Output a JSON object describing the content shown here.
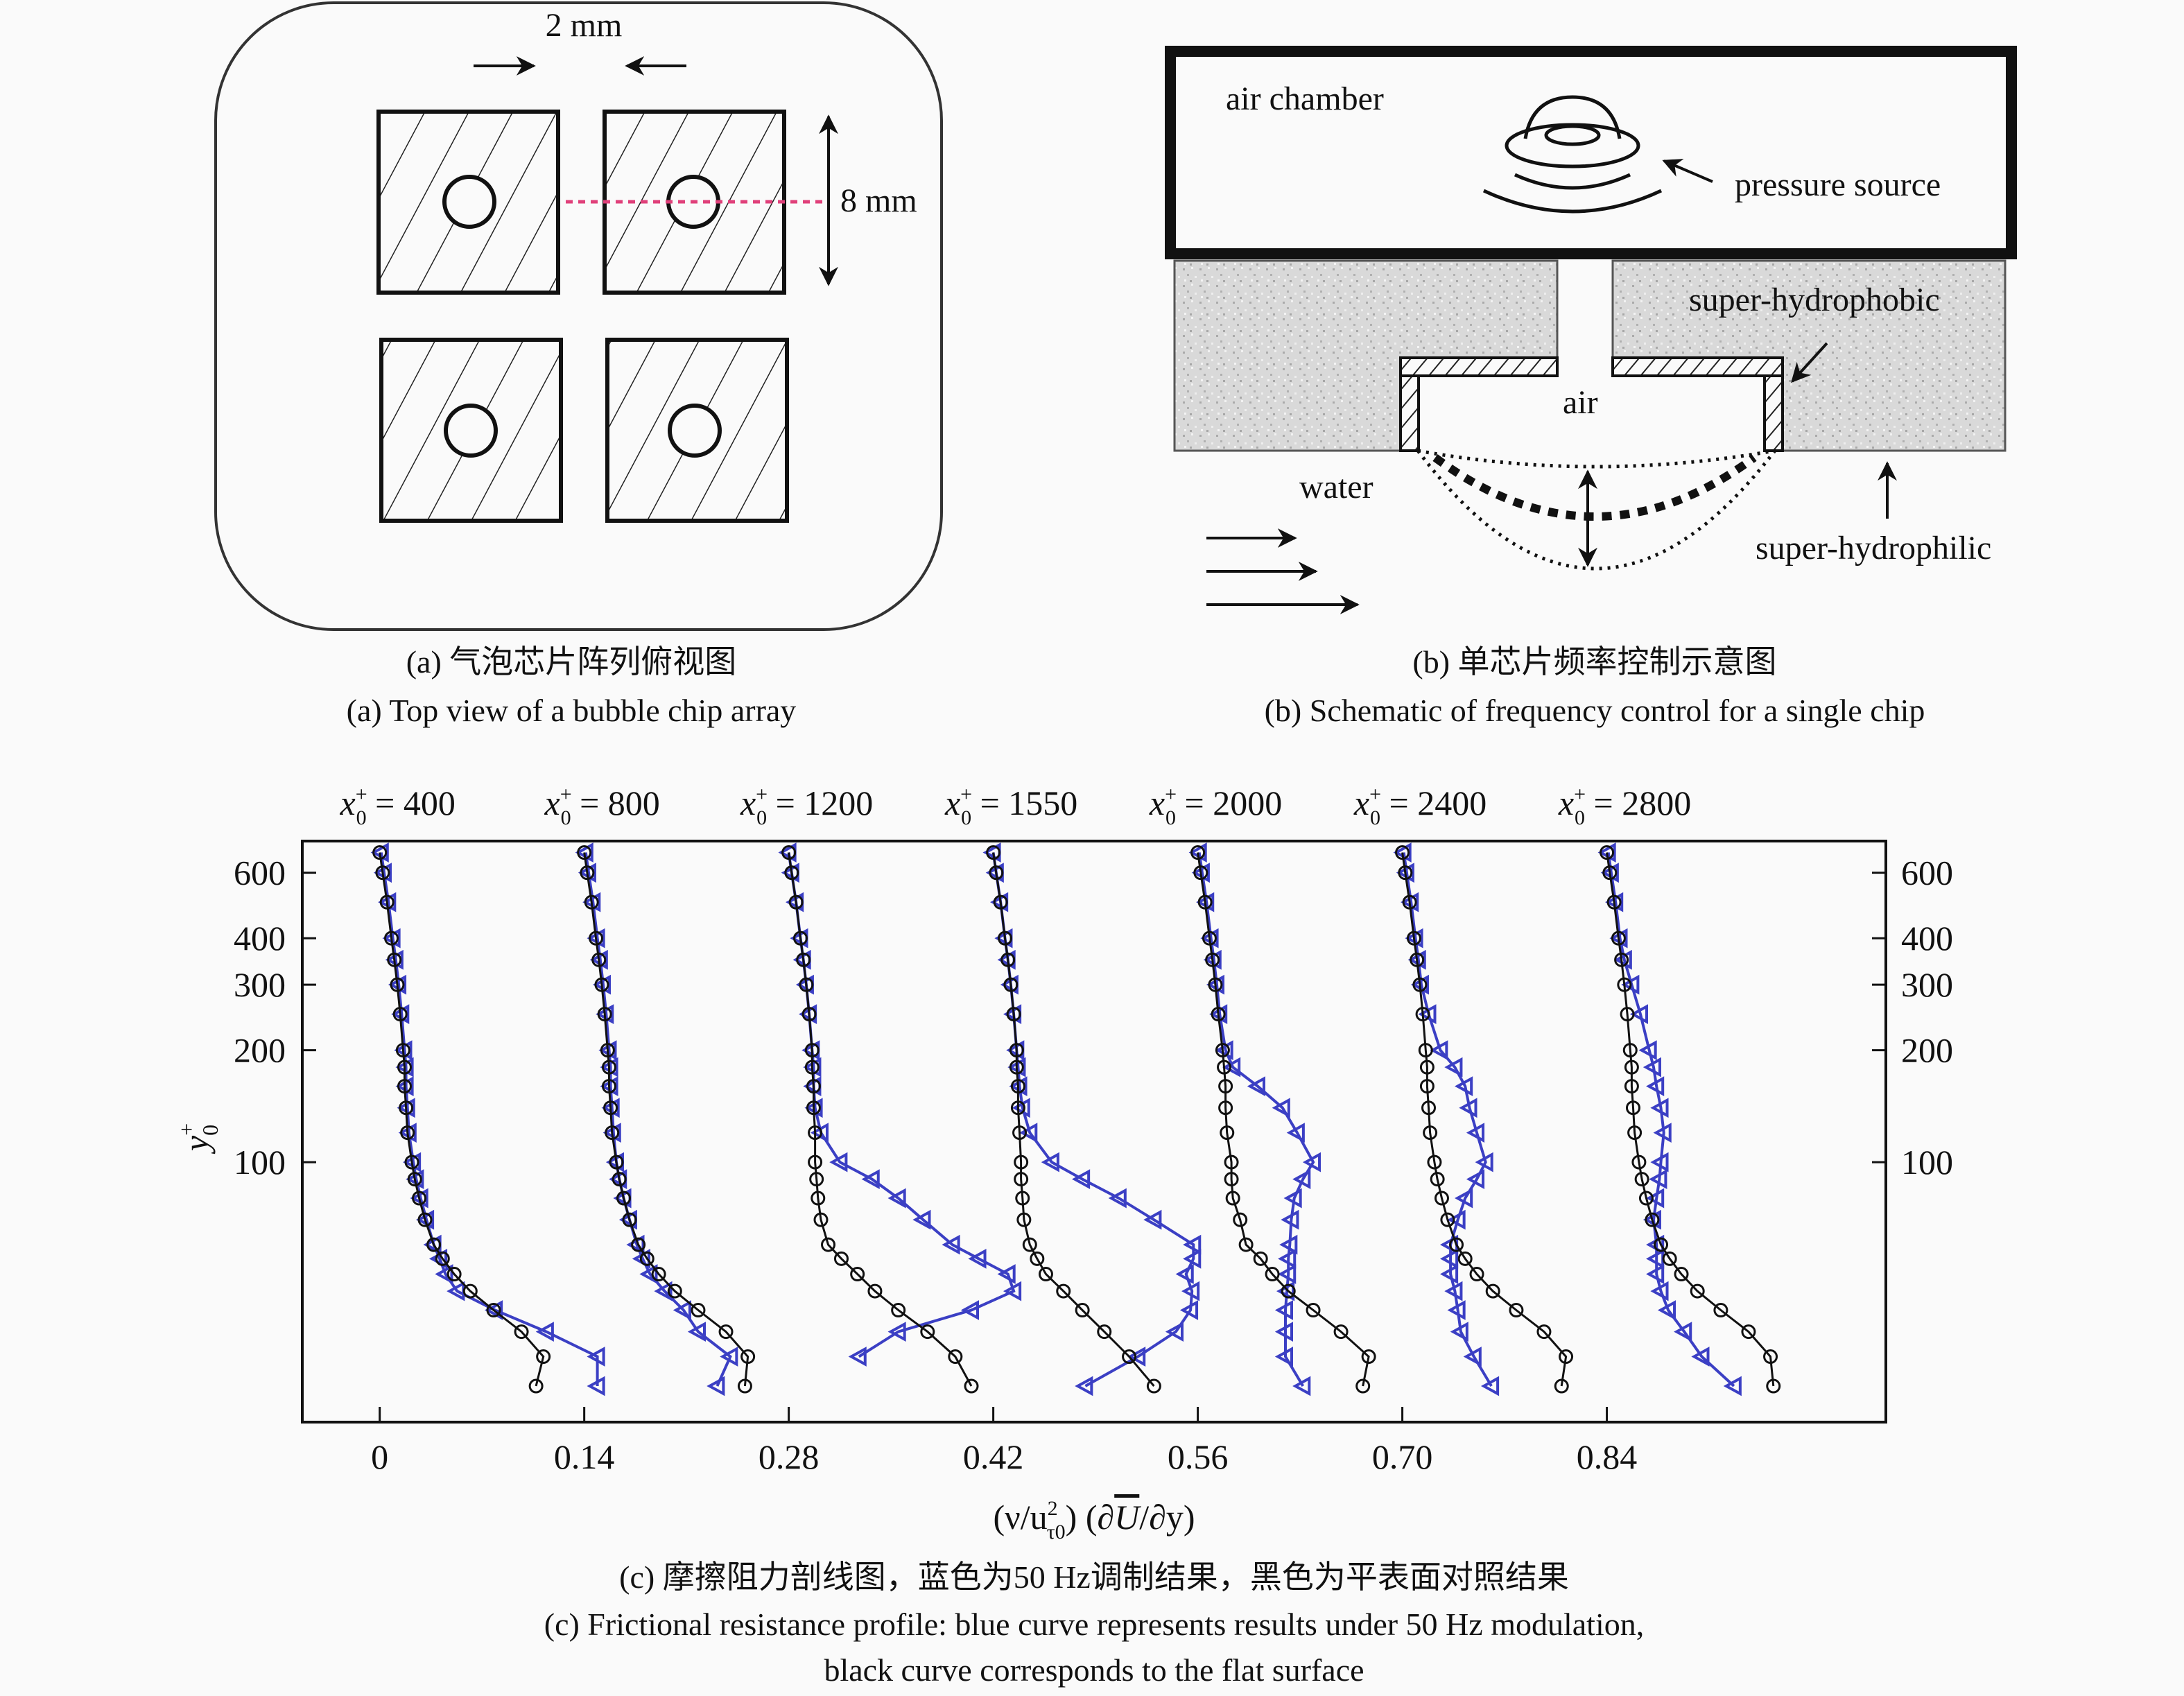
{
  "panel_a": {
    "dim_width": "2 mm",
    "dim_height": "8 mm",
    "caption_cn": "(a) 气泡芯片阵列俯视图",
    "caption_en": "(a) Top view of a bubble chip array",
    "colors": {
      "dashed_line": "#e0407a"
    }
  },
  "panel_b": {
    "air_chamber": "air chamber",
    "pressure_source": "pressure source",
    "super_hydrophobic": "super-hydrophobic",
    "air": "air",
    "water": "water",
    "super_hydrophilic": "super-hydrophilic",
    "caption_cn": "(b) 单芯片频率控制示意图",
    "caption_en": "(b) Schematic of frequency control for a single chip",
    "icons": [
      "pressure-source-icon",
      "flow-arrow-icon"
    ]
  },
  "panel_c": {
    "caption_cn": "(c) 摩擦阻力剖线图，蓝色为50 Hz调制结果，黑色为平表面对照结果",
    "caption_en_1": "(c) Frictional resistance profile: blue curve represents results under 50 Hz modulation,",
    "caption_en_2": "black curve corresponds to the flat surface"
  },
  "chart_data": {
    "type": "line",
    "ylabel": {
      "var": "y",
      "sup": "+",
      "sub": "0"
    },
    "xlabel_parts": [
      "(ν/u",
      "2",
      "τ0",
      ") (∂",
      "U",
      "/∂y)"
    ],
    "x_ticks": [
      "0",
      "0.14",
      "0.28",
      "0.42",
      "0.56",
      "0.70",
      "0.84"
    ],
    "x_tick_values": [
      0,
      0.14,
      0.28,
      0.42,
      0.56,
      0.7,
      0.84
    ],
    "y_ticks": [
      "600",
      "400",
      "300",
      "200",
      "100"
    ],
    "y_tick_values": [
      600,
      400,
      300,
      200,
      100
    ],
    "y_scale": "log",
    "xlim": [
      -0.053,
      1.031
    ],
    "ylim": [
      20,
      730
    ],
    "grid": false,
    "colors": {
      "modulated": "#3b3fc4",
      "flat": "#111111"
    },
    "series_markers": {
      "modulated": "left-triangle",
      "flat": "circle"
    },
    "y": [
      25,
      30,
      35,
      40,
      45,
      50,
      55,
      60,
      70,
      80,
      90,
      100,
      120,
      140,
      160,
      180,
      200,
      250,
      300,
      350,
      400,
      500,
      600,
      680
    ],
    "profiles": [
      {
        "label": {
          "var": "x",
          "sup": "+",
          "sub": "0",
          "eq": " = 400"
        },
        "offset": 0,
        "flat": [
          0.107,
          0.112,
          0.097,
          0.078,
          0.062,
          0.051,
          0.043,
          0.037,
          0.031,
          0.027,
          0.024,
          0.022,
          0.019,
          0.018,
          0.017,
          0.017,
          0.016,
          0.014,
          0.012,
          0.01,
          0.008,
          0.005,
          0.002,
          0.0
        ],
        "modulated": [
          0.149,
          0.149,
          0.114,
          0.079,
          0.053,
          0.045,
          0.041,
          0.037,
          0.032,
          0.028,
          0.025,
          0.023,
          0.02,
          0.019,
          0.018,
          0.018,
          0.017,
          0.015,
          0.013,
          0.011,
          0.009,
          0.006,
          0.003,
          0.001
        ]
      },
      {
        "label": {
          "var": "x",
          "sup": "+",
          "sub": "0",
          "eq": " = 800"
        },
        "offset": 0.14,
        "flat": [
          0.11,
          0.112,
          0.097,
          0.078,
          0.062,
          0.051,
          0.043,
          0.037,
          0.031,
          0.027,
          0.024,
          0.022,
          0.019,
          0.018,
          0.017,
          0.017,
          0.016,
          0.014,
          0.012,
          0.01,
          0.008,
          0.005,
          0.002,
          0.0
        ],
        "modulated": [
          0.091,
          0.1,
          0.078,
          0.068,
          0.055,
          0.045,
          0.04,
          0.036,
          0.031,
          0.027,
          0.024,
          0.022,
          0.02,
          0.019,
          0.018,
          0.018,
          0.017,
          0.015,
          0.013,
          0.011,
          0.009,
          0.006,
          0.003,
          0.001
        ]
      },
      {
        "label": {
          "var": "x",
          "sup": "+",
          "sub": "0",
          "eq": " = 1200"
        },
        "offset": 0.28,
        "flat": [
          0.125,
          0.114,
          0.095,
          0.075,
          0.059,
          0.047,
          0.036,
          0.027,
          0.022,
          0.02,
          0.019,
          0.018,
          0.018,
          0.017,
          0.017,
          0.016,
          0.016,
          0.014,
          0.012,
          0.01,
          0.008,
          0.005,
          0.002,
          0.0
        ],
        "modulated": [
          null,
          0.048,
          0.075,
          0.125,
          0.154,
          0.15,
          0.13,
          0.112,
          0.092,
          0.075,
          0.057,
          0.035,
          0.022,
          0.018,
          0.017,
          0.017,
          0.016,
          0.014,
          0.012,
          0.01,
          0.008,
          0.005,
          0.002,
          0.0
        ]
      },
      {
        "label": {
          "var": "x",
          "sup": "+",
          "sub": "0",
          "eq": " = 1550"
        },
        "offset": 0.42,
        "flat": [
          0.11,
          0.093,
          0.076,
          0.061,
          0.048,
          0.036,
          0.03,
          0.025,
          0.021,
          0.02,
          0.019,
          0.019,
          0.018,
          0.017,
          0.017,
          0.016,
          0.016,
          0.014,
          0.012,
          0.01,
          0.008,
          0.005,
          0.002,
          0.0
        ],
        "modulated": [
          0.063,
          0.099,
          0.125,
          0.135,
          0.136,
          0.132,
          0.137,
          0.137,
          0.11,
          0.086,
          0.061,
          0.04,
          0.025,
          0.02,
          0.018,
          0.017,
          0.016,
          0.014,
          0.012,
          0.01,
          0.008,
          0.005,
          0.002,
          0.0
        ]
      },
      {
        "label": {
          "var": "x",
          "sup": "+",
          "sub": "0",
          "eq": " = 2000"
        },
        "offset": 0.56,
        "flat": [
          0.113,
          0.117,
          0.098,
          0.079,
          0.062,
          0.051,
          0.043,
          0.033,
          0.029,
          0.024,
          0.023,
          0.023,
          0.02,
          0.019,
          0.019,
          0.018,
          0.017,
          0.014,
          0.012,
          0.01,
          0.008,
          0.005,
          0.002,
          0.0
        ],
        "modulated": [
          0.072,
          0.06,
          0.06,
          0.06,
          0.061,
          0.062,
          0.062,
          0.063,
          0.064,
          0.066,
          0.072,
          0.079,
          0.068,
          0.058,
          0.041,
          0.024,
          0.019,
          0.015,
          0.013,
          0.011,
          0.009,
          0.006,
          0.003,
          0.001
        ]
      },
      {
        "label": {
          "var": "x",
          "sup": "+",
          "sub": "0",
          "eq": " = 2400"
        },
        "offset": 0.7,
        "flat": [
          0.109,
          0.112,
          0.097,
          0.078,
          0.062,
          0.051,
          0.043,
          0.037,
          0.031,
          0.027,
          0.024,
          0.022,
          0.019,
          0.018,
          0.017,
          0.017,
          0.016,
          0.014,
          0.012,
          0.01,
          0.008,
          0.005,
          0.002,
          0.0
        ],
        "modulated": [
          0.061,
          0.049,
          0.04,
          0.038,
          0.036,
          0.033,
          0.033,
          0.033,
          0.038,
          0.043,
          0.051,
          0.057,
          0.051,
          0.046,
          0.043,
          0.036,
          0.026,
          0.018,
          0.013,
          0.011,
          0.009,
          0.006,
          0.003,
          0.001
        ]
      },
      {
        "label": {
          "var": "x",
          "sup": "+",
          "sub": "0",
          "eq": " = 2800"
        },
        "offset": 0.84,
        "flat": [
          0.114,
          0.112,
          0.097,
          0.078,
          0.062,
          0.051,
          0.043,
          0.037,
          0.031,
          0.027,
          0.024,
          0.022,
          0.019,
          0.018,
          0.017,
          0.017,
          0.016,
          0.014,
          0.012,
          0.01,
          0.008,
          0.005,
          0.002,
          0.0
        ],
        "modulated": [
          0.087,
          0.065,
          0.053,
          0.042,
          0.037,
          0.034,
          0.034,
          0.034,
          0.032,
          0.034,
          0.036,
          0.037,
          0.039,
          0.037,
          0.034,
          0.032,
          0.029,
          0.023,
          0.017,
          0.012,
          0.009,
          0.006,
          0.003,
          0.001
        ]
      }
    ]
  }
}
